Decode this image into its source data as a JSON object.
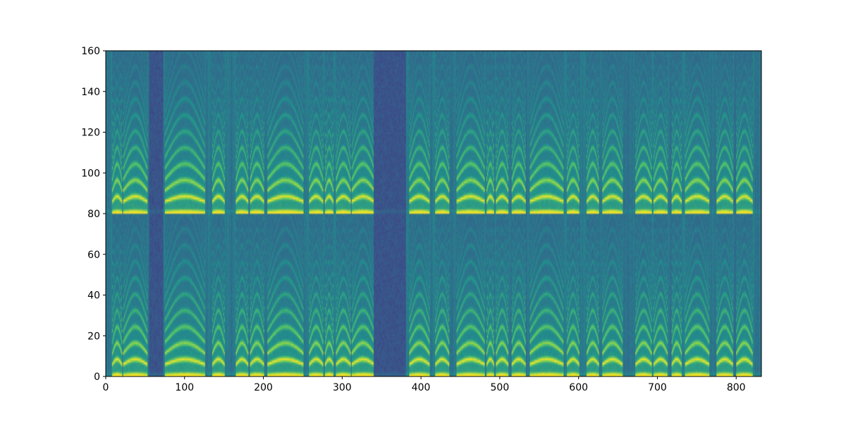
{
  "chart_data": {
    "type": "heatmap",
    "title": "",
    "xlabel": "",
    "ylabel": "",
    "xlim": [
      0,
      832
    ],
    "ylim": [
      0,
      160
    ],
    "x_ticks": [
      0,
      100,
      200,
      300,
      400,
      500,
      600,
      700,
      800
    ],
    "y_ticks": [
      0,
      20,
      40,
      60,
      80,
      100,
      120,
      140,
      160
    ],
    "colormap": "viridis",
    "colormap_stops": [
      "#440154",
      "#3b528b",
      "#21918c",
      "#5ec962",
      "#fde725"
    ],
    "grid": false,
    "legend": "none",
    "panels": [
      {
        "name": "lower",
        "y_range": [
          0,
          80
        ]
      },
      {
        "name": "upper",
        "y_range": [
          80,
          160
        ]
      }
    ],
    "bright_segments": [
      [
        8,
        20
      ],
      [
        22,
        52
      ],
      [
        75,
        125
      ],
      [
        135,
        150
      ],
      [
        165,
        180
      ],
      [
        183,
        200
      ],
      [
        205,
        250
      ],
      [
        258,
        275
      ],
      [
        278,
        288
      ],
      [
        292,
        310
      ],
      [
        312,
        340
      ],
      [
        385,
        410
      ],
      [
        418,
        435
      ],
      [
        445,
        480
      ],
      [
        483,
        492
      ],
      [
        495,
        510
      ],
      [
        515,
        532
      ],
      [
        538,
        580
      ],
      [
        585,
        600
      ],
      [
        610,
        625
      ],
      [
        630,
        655
      ],
      [
        672,
        692
      ],
      [
        695,
        712
      ],
      [
        718,
        730
      ],
      [
        735,
        765
      ],
      [
        775,
        795
      ],
      [
        800,
        820
      ]
    ],
    "dark_segments": [
      [
        55,
        72
      ],
      [
        340,
        380
      ]
    ]
  }
}
